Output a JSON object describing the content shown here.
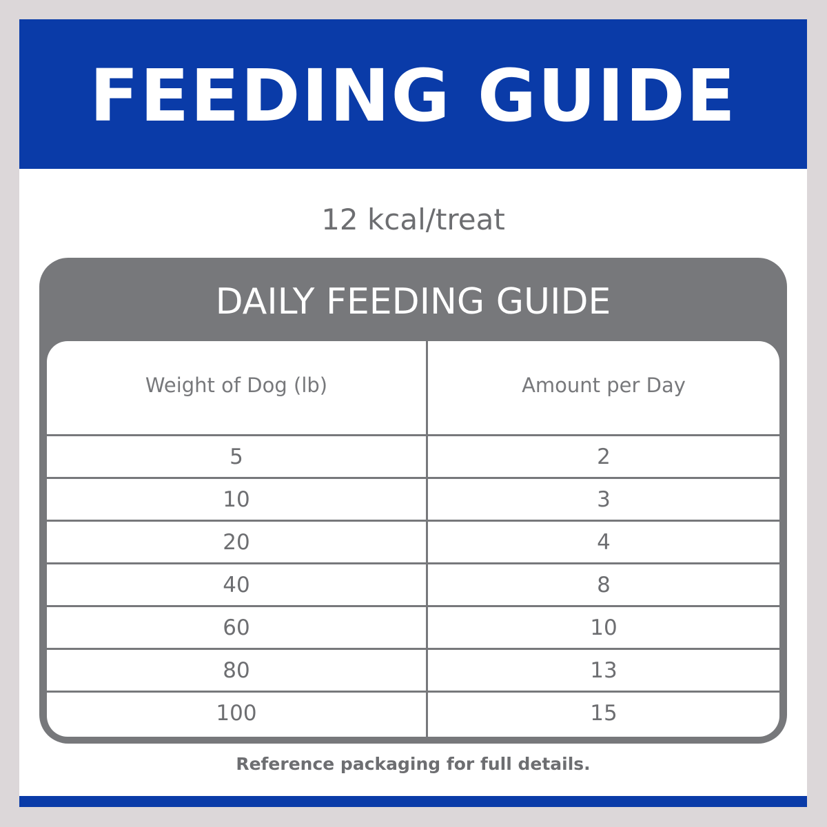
{
  "banner": {
    "title": "FEEDING GUIDE"
  },
  "subtitle": "12 kcal/treat",
  "panel": {
    "title": "DAILY FEEDING GUIDE",
    "columns": [
      "Weight of Dog (lb)",
      "Amount per Day"
    ],
    "rows": [
      [
        "5",
        "2"
      ],
      [
        "10",
        "3"
      ],
      [
        "20",
        "4"
      ],
      [
        "40",
        "8"
      ],
      [
        "60",
        "10"
      ],
      [
        "80",
        "13"
      ],
      [
        "100",
        "15"
      ]
    ]
  },
  "footnote": "Reference packaging for full details.",
  "colors": {
    "brand_blue": "#0a3ba8",
    "panel_gray": "#77787b",
    "text_gray": "#6d6e71",
    "background": "#dcd7d9"
  }
}
